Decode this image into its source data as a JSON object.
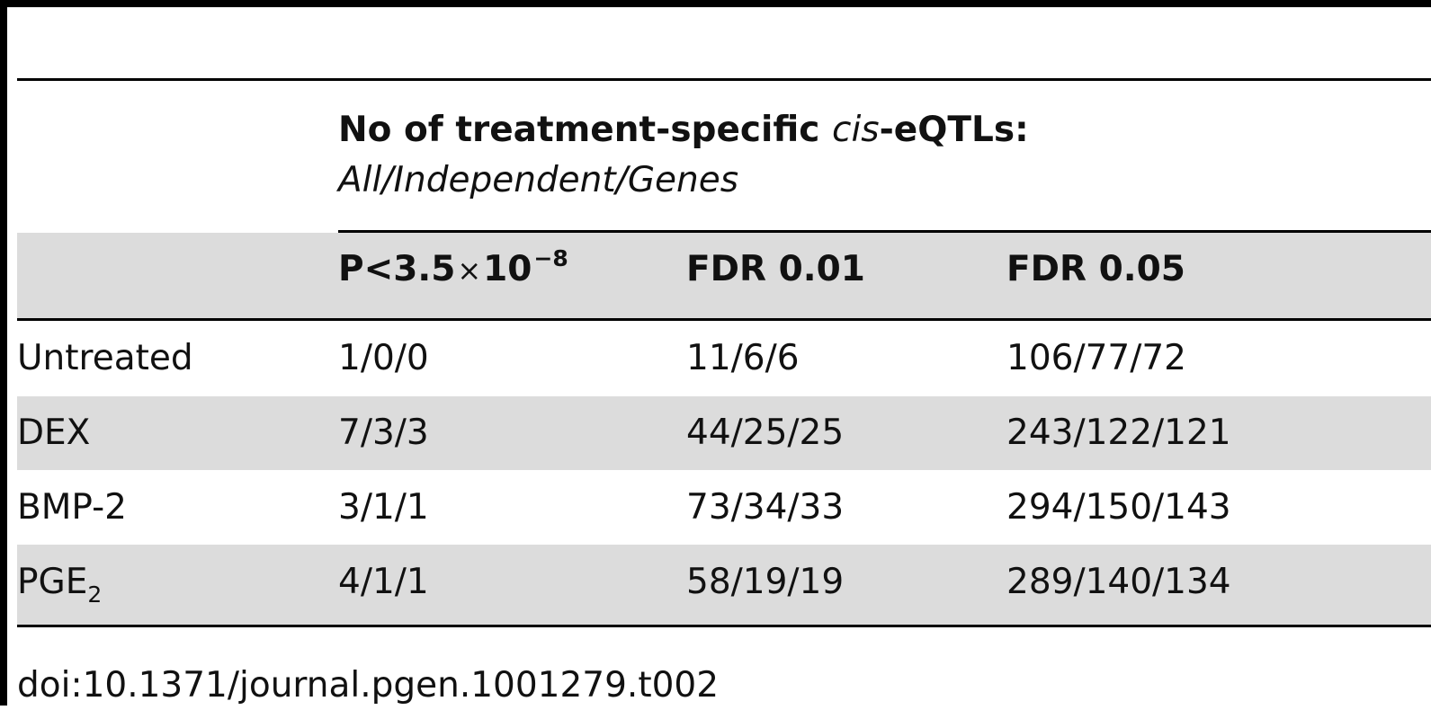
{
  "table": {
    "group_header": {
      "prefix": "No of treatment-specific ",
      "italic_term": "cis",
      "suffix": "-eQTLs:",
      "subtitle": "All/Independent/Genes"
    },
    "columns": [
      {
        "base": "P<3.5",
        "times": "×",
        "power": "10",
        "exponent": "−8"
      },
      {
        "label": "FDR 0.01"
      },
      {
        "label": "FDR 0.05"
      }
    ],
    "rows": [
      {
        "treatment": "Untreated",
        "treatment_sub": "",
        "values": [
          "1/0/0",
          "11/6/6",
          "106/77/72"
        ],
        "shaded": false
      },
      {
        "treatment": "DEX",
        "treatment_sub": "",
        "values": [
          "7/3/3",
          "44/25/25",
          "243/122/121"
        ],
        "shaded": true
      },
      {
        "treatment": "BMP-2",
        "treatment_sub": "",
        "values": [
          "3/1/1",
          "73/34/33",
          "294/150/143"
        ],
        "shaded": false
      },
      {
        "treatment": "PGE",
        "treatment_sub": "2",
        "values": [
          "4/1/1",
          "58/19/19",
          "289/140/134"
        ],
        "shaded": true
      }
    ]
  },
  "footer": {
    "doi": "doi:10.1371/journal.pgen.1001279.t002"
  },
  "colors": {
    "shade": "#dcdcdc",
    "rule": "#000000",
    "text": "#111111"
  }
}
